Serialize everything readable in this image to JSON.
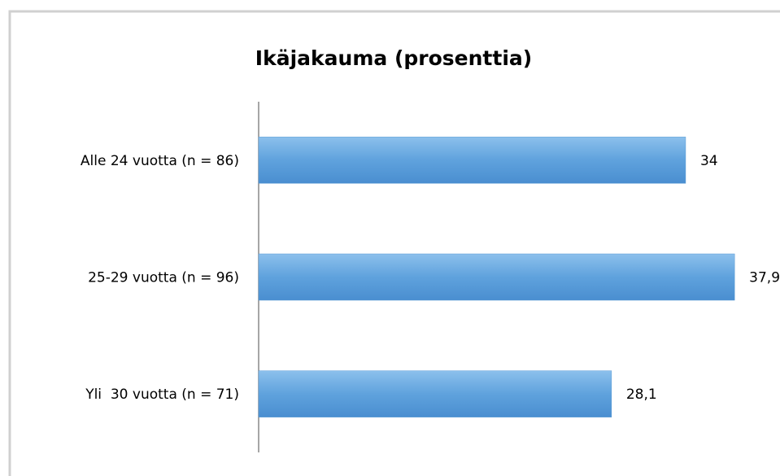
{
  "chart_data": {
    "type": "bar",
    "orientation": "horizontal",
    "title": "Ikäjakauma (prosenttia)",
    "categories": [
      "Alle 24 vuotta (n = 86)",
      "25-29 vuotta (n = 96)",
      "Yli  30 vuotta (n = 71)"
    ],
    "values": [
      34,
      37.9,
      28.1
    ],
    "value_labels": [
      "34",
      "37,9",
      "28,1"
    ],
    "color": "#5b9bd5"
  }
}
